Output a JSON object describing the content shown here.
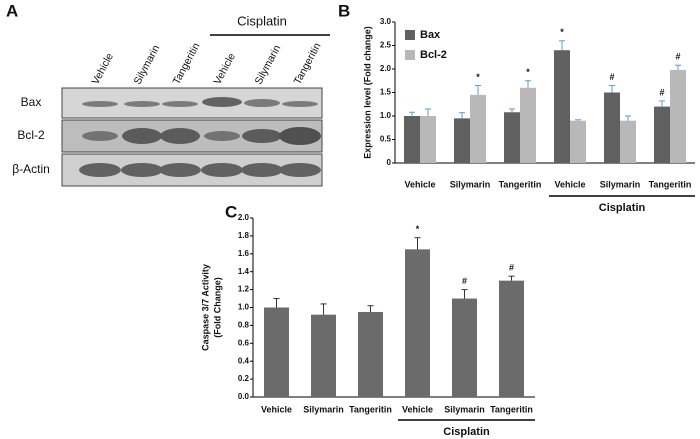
{
  "blot": {
    "panel_label": "A",
    "group_label": "Cisplatin",
    "lanes": [
      "Vehicle",
      "Silymarin",
      "Tangeritin",
      "Vehicle",
      "Silymarin",
      "Tangeritin"
    ],
    "rows": [
      "Bax",
      "Bcl-2",
      "β-Actin"
    ]
  },
  "chart_data": [
    {
      "type": "bar",
      "panel_label": "B",
      "ylabel": "Expression level (Fold change)",
      "group_label": "Cisplatin",
      "categories": [
        "Vehicle",
        "Silymarin",
        "Tangeritin",
        "Vehicle",
        "Silymarin",
        "Tangeritin"
      ],
      "series": [
        {
          "name": "Bax",
          "color": "#606060",
          "values": [
            1.0,
            0.95,
            1.08,
            2.4,
            1.5,
            1.2
          ],
          "errors": [
            0.08,
            0.12,
            0.07,
            0.2,
            0.15,
            0.12
          ],
          "annotations": [
            null,
            null,
            null,
            "*",
            "#",
            "#"
          ]
        },
        {
          "name": "Bcl-2",
          "color": "#b8b8b8",
          "values": [
            1.0,
            1.45,
            1.6,
            0.9,
            0.9,
            1.98
          ],
          "errors": [
            0.15,
            0.2,
            0.15,
            0.02,
            0.1,
            0.1
          ],
          "annotations": [
            null,
            "*",
            "*",
            null,
            null,
            "#"
          ]
        }
      ],
      "ylim": [
        0,
        3
      ],
      "yticks": [
        0,
        0.5,
        {
          "value": 1,
          "label": "1.0"
        },
        1.5,
        {
          "value": 2,
          "label": "2.0"
        },
        2.5,
        {
          "value": 3,
          "label": "3.0"
        }
      ],
      "legend": "top-left"
    },
    {
      "type": "bar",
      "panel_label": "C",
      "ylabel": [
        "Caspase 3/7 Activity",
        "(Fold Change)"
      ],
      "group_label": "Cisplatin",
      "categories": [
        "Vehicle",
        "Silymarin",
        "Tangeritin",
        "Vehicle",
        "Silymarin",
        "Tangeritin"
      ],
      "color": "#6b6b6b",
      "values": [
        1.0,
        0.92,
        0.95,
        1.65,
        1.1,
        1.3
      ],
      "errors": [
        0.1,
        0.12,
        0.07,
        0.13,
        0.1,
        0.05
      ],
      "annotations": [
        null,
        null,
        null,
        "*",
        "#",
        "#"
      ],
      "ylim": [
        0,
        2
      ],
      "yticks": [
        {
          "value": 0,
          "label": "0.0"
        },
        0.2,
        0.4,
        0.6,
        0.8,
        {
          "value": 1,
          "label": "1.0"
        },
        1.2,
        1.4,
        1.6,
        1.8,
        {
          "value": 2,
          "label": "2.0"
        }
      ]
    }
  ]
}
